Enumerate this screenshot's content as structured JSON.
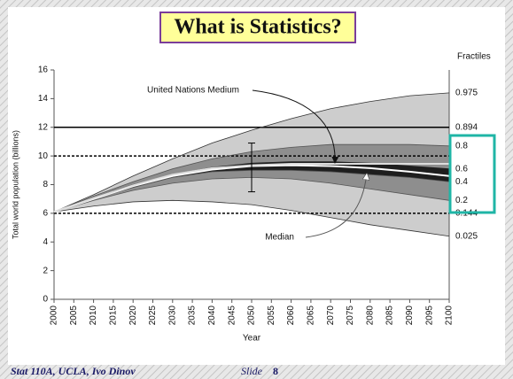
{
  "slide": {
    "title": "What is Statistics?",
    "footer": "Stat 110A, UCLA, Ivo Dinov",
    "slide_label": "Slide",
    "slide_number": 8
  },
  "chart_data": {
    "type": "fan",
    "y_label": "Total world population (billions)",
    "x_label": "Year",
    "right_header": "Fractiles",
    "x": [
      2000,
      2010,
      2020,
      2030,
      2040,
      2050,
      2060,
      2070,
      2080,
      2090,
      2100
    ],
    "xlim": [
      2000,
      2100
    ],
    "xticks": [
      2000,
      2005,
      2010,
      2015,
      2020,
      2025,
      2030,
      2035,
      2040,
      2045,
      2050,
      2055,
      2060,
      2065,
      2070,
      2075,
      2080,
      2085,
      2090,
      2095,
      2100
    ],
    "ylim": [
      0,
      16
    ],
    "yticks": [
      0,
      2,
      4,
      6,
      8,
      10,
      12,
      14,
      16
    ],
    "series": [
      {
        "name": "0.975",
        "kind": "fractile",
        "color": "#333333",
        "fill": "#cdcdcd",
        "values": [
          6.1,
          7.3,
          8.6,
          9.8,
          10.9,
          11.8,
          12.6,
          13.3,
          13.8,
          14.2,
          14.4
        ]
      },
      {
        "name": "0.8",
        "kind": "fractile",
        "color": "#555555",
        "fill": "#8e8e8e",
        "values": [
          6.1,
          7.2,
          8.2,
          9.1,
          9.8,
          10.3,
          10.6,
          10.8,
          10.8,
          10.8,
          10.7
        ]
      },
      {
        "name": "0.6",
        "kind": "fractile",
        "color": "#222222",
        "fill": "#1e1e1e",
        "values": [
          6.1,
          7.1,
          8.0,
          8.7,
          9.2,
          9.5,
          9.6,
          9.6,
          9.5,
          9.3,
          9.1
        ]
      },
      {
        "name": "0.4",
        "kind": "fractile",
        "color": "#555555",
        "fill": "#8e8e8e",
        "values": [
          6.1,
          7.0,
          7.8,
          8.5,
          8.9,
          9.0,
          9.0,
          8.9,
          8.7,
          8.5,
          8.2
        ]
      },
      {
        "name": "0.2",
        "kind": "fractile",
        "color": "#555555",
        "fill": "#cdcdcd",
        "values": [
          6.1,
          6.9,
          7.6,
          8.1,
          8.4,
          8.5,
          8.4,
          8.1,
          7.7,
          7.3,
          6.9
        ]
      },
      {
        "name": "0.025",
        "kind": "fractile",
        "color": "#333333",
        "values": [
          6.1,
          6.5,
          6.8,
          6.9,
          6.8,
          6.6,
          6.2,
          5.7,
          5.2,
          4.8,
          4.4
        ]
      },
      {
        "name": "Median",
        "kind": "estimate",
        "color": "#ffffff",
        "values": [
          6.1,
          7.0,
          7.9,
          8.6,
          9.05,
          9.3,
          9.35,
          9.3,
          9.15,
          8.9,
          8.6
        ]
      },
      {
        "name": "United Nations Medium",
        "kind": "estimate",
        "color": "#dddddd",
        "values": [
          6.1,
          7.05,
          7.95,
          8.7,
          9.15,
          9.35,
          9.45,
          9.45,
          9.45,
          9.45,
          9.45
        ]
      }
    ],
    "hlines": [
      {
        "value": 12,
        "style": "solid",
        "label": "0.894"
      },
      {
        "value": 10,
        "style": "dashed"
      },
      {
        "value": 6,
        "style": "dashed",
        "label": "0.144"
      }
    ],
    "interval": {
      "x": 2050,
      "low": 7.5,
      "high": 10.9
    }
  }
}
